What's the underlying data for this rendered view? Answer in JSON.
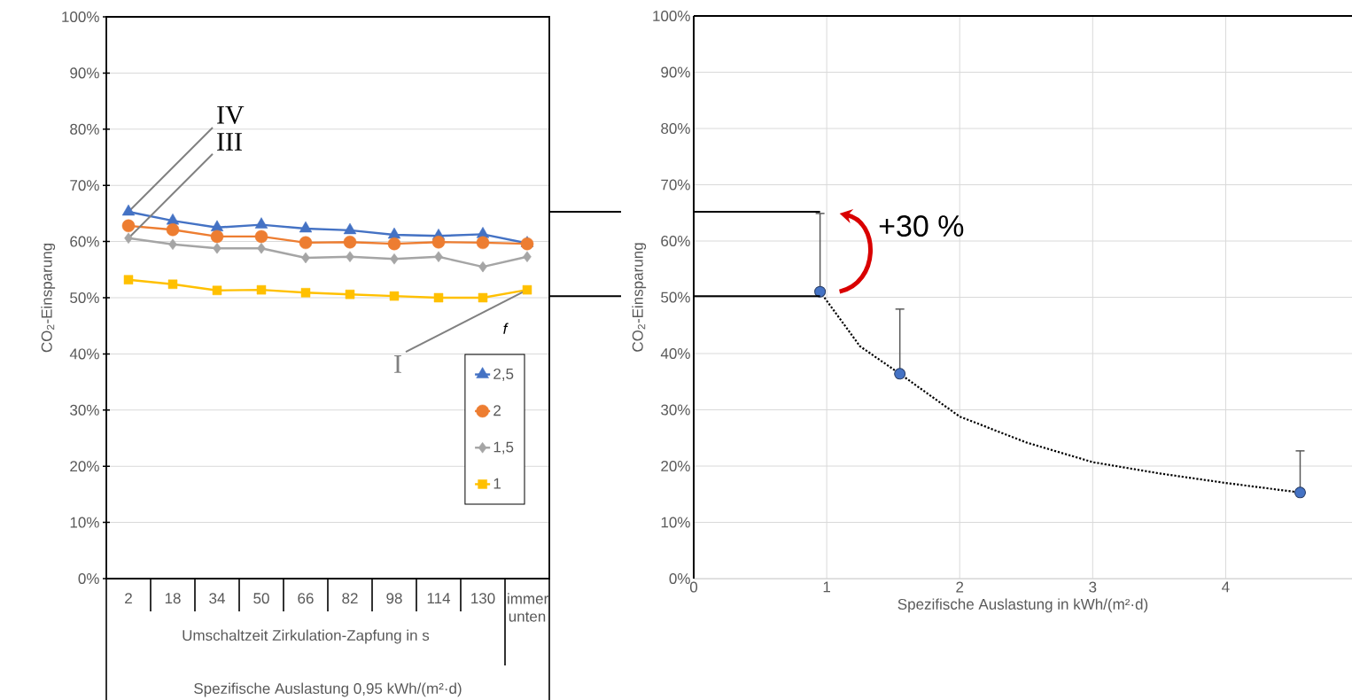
{
  "chart_data": [
    {
      "type": "line",
      "ylabel": "CO$_{2}$-Einsparung",
      "xlabel": "Umschaltzeit Zirkulation-Zapfung in s",
      "categories": [
        "2",
        "18",
        "34",
        "50",
        "66",
        "82",
        "98",
        "114",
        "130",
        "immer unten"
      ],
      "series": [
        {
          "name": "2,5",
          "color": "#4472c4",
          "marker": "triangle",
          "values": [
            65.3,
            63.7,
            62.5,
            63.0,
            62.3,
            62.0,
            61.2,
            61.0,
            61.3,
            59.7
          ]
        },
        {
          "name": "2",
          "color": "#ed7d31",
          "marker": "circle",
          "values": [
            62.8,
            62.1,
            60.9,
            60.9,
            59.8,
            59.9,
            59.6,
            59.9,
            59.8,
            59.6
          ]
        },
        {
          "name": "1,5",
          "color": "#a5a5a5",
          "marker": "diamond",
          "values": [
            60.6,
            59.5,
            58.8,
            58.8,
            57.1,
            57.3,
            56.9,
            57.3,
            55.5,
            57.3
          ]
        },
        {
          "name": "1",
          "color": "#ffc000",
          "marker": "square",
          "values": [
            53.2,
            52.4,
            51.3,
            51.4,
            50.9,
            50.6,
            50.3,
            50.0,
            50.0,
            51.4
          ]
        }
      ],
      "legend_title": "f",
      "legend": "bottom right",
      "grid": "y",
      "ylim": [
        0,
        100
      ],
      "yticks": [
        {
          "value": 0,
          "label": "0%"
        },
        {
          "value": 10,
          "label": "10%"
        },
        {
          "value": 20,
          "label": "20%"
        },
        {
          "value": 30,
          "label": "30%"
        },
        {
          "value": 40,
          "label": "40%"
        },
        {
          "value": 50,
          "label": "50%"
        },
        {
          "value": 60,
          "label": "60%"
        },
        {
          "value": 70,
          "label": "70%"
        },
        {
          "value": 80,
          "label": "80%"
        },
        {
          "value": 90,
          "label": "90%"
        },
        {
          "value": 100,
          "label": "100%"
        }
      ],
      "annotations": [
        "Spezifische Auslastung 0,95 kWh/(m²·d)",
        {
          "text": "IV",
          "x": "2",
          "y": 65.3
        },
        {
          "text": "III",
          "x": "2",
          "y": 60.6
        },
        {
          "text": "I",
          "x": "immer unten",
          "y": 51.4
        }
      ]
    },
    {
      "type": "scatter",
      "ylabel": "CO$_{2}$-Einsparung",
      "xlabel": "Spezifische Auslastung in kWh/(m²·d)",
      "series": [
        {
          "type": "scatter",
          "color": "#4472c4",
          "marker": "circle",
          "x": [
            0.95,
            1.55,
            4.56
          ],
          "values": [
            51.0,
            36.4,
            15.3
          ],
          "errors": [
            [
              51.0,
              64.9
            ],
            [
              36.4,
              47.9
            ],
            [
              15.3,
              22.7
            ]
          ]
        },
        {
          "type": "line",
          "color": "#000000",
          "marker": "none",
          "line_style": "dotted",
          "x": [
            0.95,
            1.25,
            1.55,
            2.0,
            2.5,
            3.0,
            3.5,
            4.0,
            4.56
          ],
          "values": [
            51.0,
            41.3,
            36.4,
            28.8,
            24.2,
            20.7,
            18.7,
            17.0,
            15.3
          ]
        }
      ],
      "grid": true,
      "xlim": [
        0,
        4.95
      ],
      "xticks": [
        0,
        1,
        2,
        3,
        4
      ],
      "ylim": [
        0,
        100
      ],
      "yticks": [
        {
          "value": 0,
          "label": "0%"
        },
        {
          "value": 10,
          "label": "10%"
        },
        {
          "value": 20,
          "label": "20%"
        },
        {
          "value": 30,
          "label": "30%"
        },
        {
          "value": 40,
          "label": "40%"
        },
        {
          "value": 50,
          "label": "50%"
        },
        {
          "value": 60,
          "label": "60%"
        },
        {
          "value": 70,
          "label": "70%"
        },
        {
          "value": 80,
          "label": "80%"
        },
        {
          "value": 90,
          "label": "90%"
        },
        {
          "value": 100,
          "label": "100%"
        }
      ],
      "ref_lines": [
        {
          "axis": "y",
          "value": 65.2,
          "color": "#000000",
          "line_style": "solid"
        },
        {
          "axis": "y",
          "value": 50.2,
          "color": "#000000",
          "line_style": "solid"
        }
      ],
      "annotations": [
        "+30 %"
      ]
    }
  ]
}
